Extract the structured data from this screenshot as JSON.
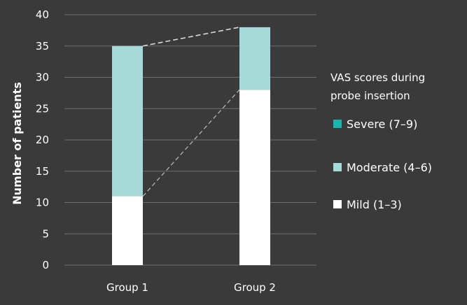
{
  "chart_data": {
    "type": "bar",
    "stacked": true,
    "categories": [
      "Group 1",
      "Group 2"
    ],
    "series": [
      {
        "name": "Mild (1–3)",
        "values": [
          11,
          28
        ],
        "color": "#ffffff"
      },
      {
        "name": "Moderate (4–6)",
        "values": [
          24,
          10
        ],
        "color": "#a6dad8"
      },
      {
        "name": "Severe (7–9)",
        "values": [
          0,
          0
        ],
        "color": "#1ab5ad"
      }
    ],
    "legend_order": [
      2,
      1,
      0
    ],
    "title": "",
    "xlabel": "",
    "ylabel": "Number of patients",
    "ylim": [
      0,
      40
    ],
    "yticks": [
      0,
      5,
      10,
      15,
      20,
      25,
      30,
      35,
      40
    ],
    "legend_title_lines": [
      "VAS scores during",
      "probe insertion"
    ],
    "legend_position": "right",
    "grid": true,
    "series_lines": "dashed connectors between stack tops",
    "background_color": "#3a3a3a",
    "grid_color": "#6e6e6e"
  }
}
